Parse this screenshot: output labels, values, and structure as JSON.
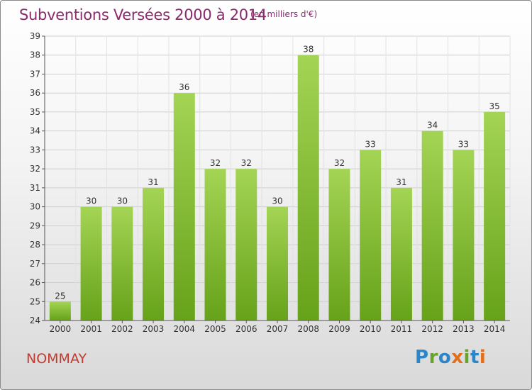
{
  "title": "Subventions Versées 2000 à 2014",
  "subtitle": "(en milliers d'€)",
  "commune": "NOMMAY",
  "logo": "Proxiti",
  "colors": {
    "bar_top": "#a4d454",
    "bar_bottom": "#66a21a",
    "title": "#8c2a6e",
    "commune": "#c23a30"
  },
  "chart_data": {
    "type": "bar",
    "categories": [
      "2000",
      "2001",
      "2002",
      "2003",
      "2004",
      "2005",
      "2006",
      "2007",
      "2008",
      "2009",
      "2010",
      "2011",
      "2012",
      "2013",
      "2014"
    ],
    "values": [
      25,
      30,
      30,
      31,
      36,
      32,
      32,
      30,
      38,
      32,
      33,
      31,
      34,
      33,
      35
    ],
    "ylim": [
      24,
      39
    ],
    "yticks": [
      24,
      25,
      26,
      27,
      28,
      29,
      30,
      31,
      32,
      33,
      34,
      35,
      36,
      37,
      38,
      39
    ],
    "grid": true
  }
}
